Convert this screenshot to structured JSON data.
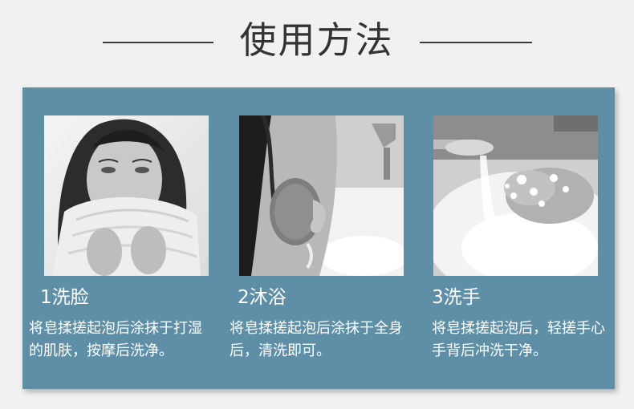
{
  "header": {
    "title": "使用方法"
  },
  "steps": [
    {
      "title": "1洗脸",
      "description": "将皂揉搓起泡后涂抹于打湿的肌肤，按摩后洗净。"
    },
    {
      "title": "2沐浴",
      "description": "将皂揉搓起泡后涂抹于全身后，清洗即可。"
    },
    {
      "title": "3洗手",
      "description": "将皂揉搓起泡后，轻搓手心手背后冲洗干净。"
    }
  ],
  "colors": {
    "panel": "#5f8fa7",
    "background": "#f1f1f1",
    "text": "#ffffff",
    "title": "#333333"
  }
}
